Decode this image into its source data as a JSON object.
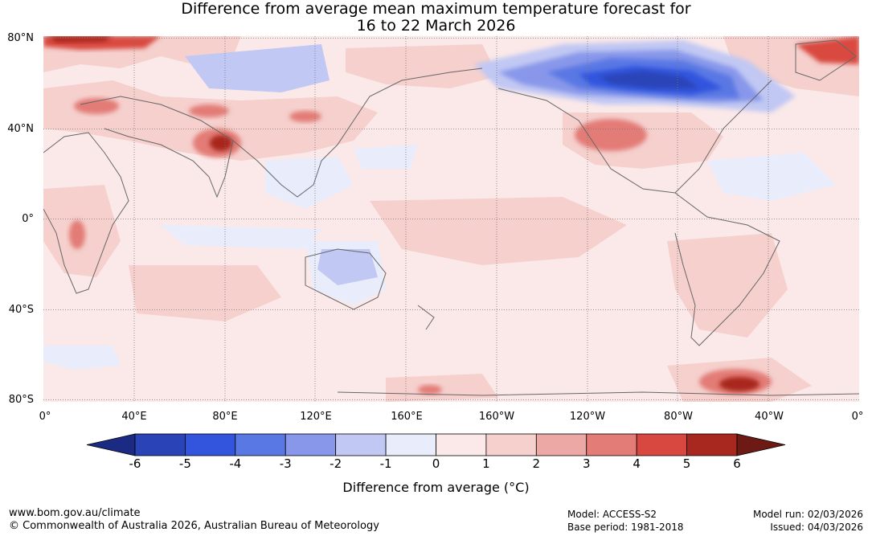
{
  "title": {
    "line1": "Difference from average mean maximum temperature forecast for",
    "line2": "16 to 22 March 2026"
  },
  "axes": {
    "lat_labels": [
      "80°N",
      "40°N",
      "0°",
      "40°S",
      "80°S"
    ],
    "lon_labels": [
      "0°",
      "40°E",
      "80°E",
      "120°E",
      "160°E",
      "160°W",
      "120°W",
      "80°W",
      "40°W",
      "0°"
    ]
  },
  "colorbar": {
    "ticks": [
      "-6",
      "-5",
      "-4",
      "-3",
      "-2",
      "-1",
      "0",
      "1",
      "2",
      "3",
      "4",
      "5",
      "6"
    ],
    "colors": [
      "#1b2a82",
      "#2a44b8",
      "#3355de",
      "#5a78e4",
      "#8897ea",
      "#c1c8f3",
      "#e9ecfb",
      "#fbe9e9",
      "#f5d0cd",
      "#eba8a4",
      "#e37c76",
      "#d94840",
      "#a8271f",
      "#6e1a14"
    ],
    "label": "Difference from average (°C)"
  },
  "footer": {
    "website": "www.bom.gov.au/climate",
    "copyright": "© Commonwealth of Australia 2026, Australian Bureau of Meteorology",
    "model": "Model: ACCESS-S2",
    "base_period": "Base period: 1981-2018",
    "model_run": "Model run: 02/03/2026",
    "issued": "Issued: 04/03/2026"
  }
}
